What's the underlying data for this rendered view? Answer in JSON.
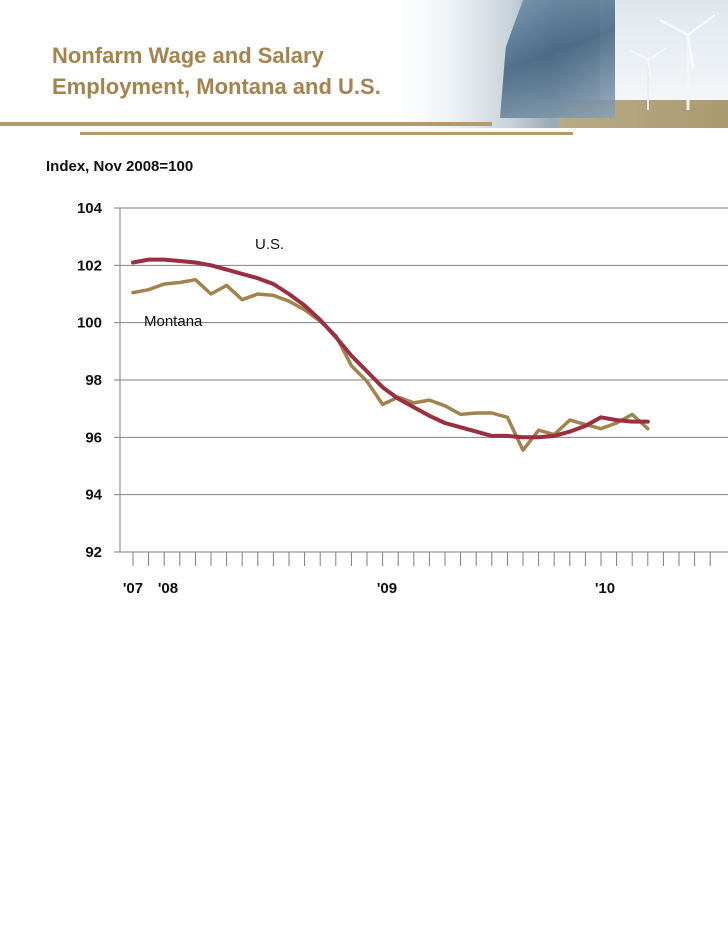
{
  "title_line1": "Nonfarm Wage and Salary",
  "title_line2": "Employment, Montana and U.S.",
  "colors": {
    "title": "#a3844e",
    "us_line": "#9b2f42",
    "montana_line": "#a0844d",
    "grid": "#7f7f7f"
  },
  "chart_data": {
    "type": "line",
    "ylabel": "Index, Nov 2008=100",
    "ylim": [
      92,
      104
    ],
    "yticks": [
      92,
      94,
      96,
      98,
      100,
      102,
      104
    ],
    "xticklabels": [
      "'07",
      "'08",
      "'09",
      "'10"
    ],
    "grid": true,
    "series": [
      {
        "name": "U.S.",
        "values": [
          102.1,
          102.2,
          102.2,
          102.15,
          102.1,
          102.0,
          101.85,
          101.7,
          101.55,
          101.35,
          101.0,
          100.6,
          100.1,
          99.5,
          98.85,
          98.3,
          97.75,
          97.35,
          97.05,
          96.75,
          96.5,
          96.35,
          96.2,
          96.05,
          96.05,
          96.0,
          96.0,
          96.05,
          96.2,
          96.4,
          96.7,
          96.6,
          96.55,
          96.55
        ]
      },
      {
        "name": "Montana",
        "values": [
          101.05,
          101.15,
          101.35,
          101.4,
          101.5,
          101.0,
          101.3,
          100.8,
          101.0,
          100.95,
          100.75,
          100.45,
          100.05,
          99.55,
          98.5,
          97.95,
          97.15,
          97.4,
          97.2,
          97.3,
          97.1,
          96.8,
          96.85,
          96.85,
          96.7,
          95.55,
          96.25,
          96.1,
          96.6,
          96.45,
          96.3,
          96.5,
          96.8,
          96.3
        ]
      }
    ],
    "annotations": [
      "U.S.",
      "Montana"
    ]
  }
}
